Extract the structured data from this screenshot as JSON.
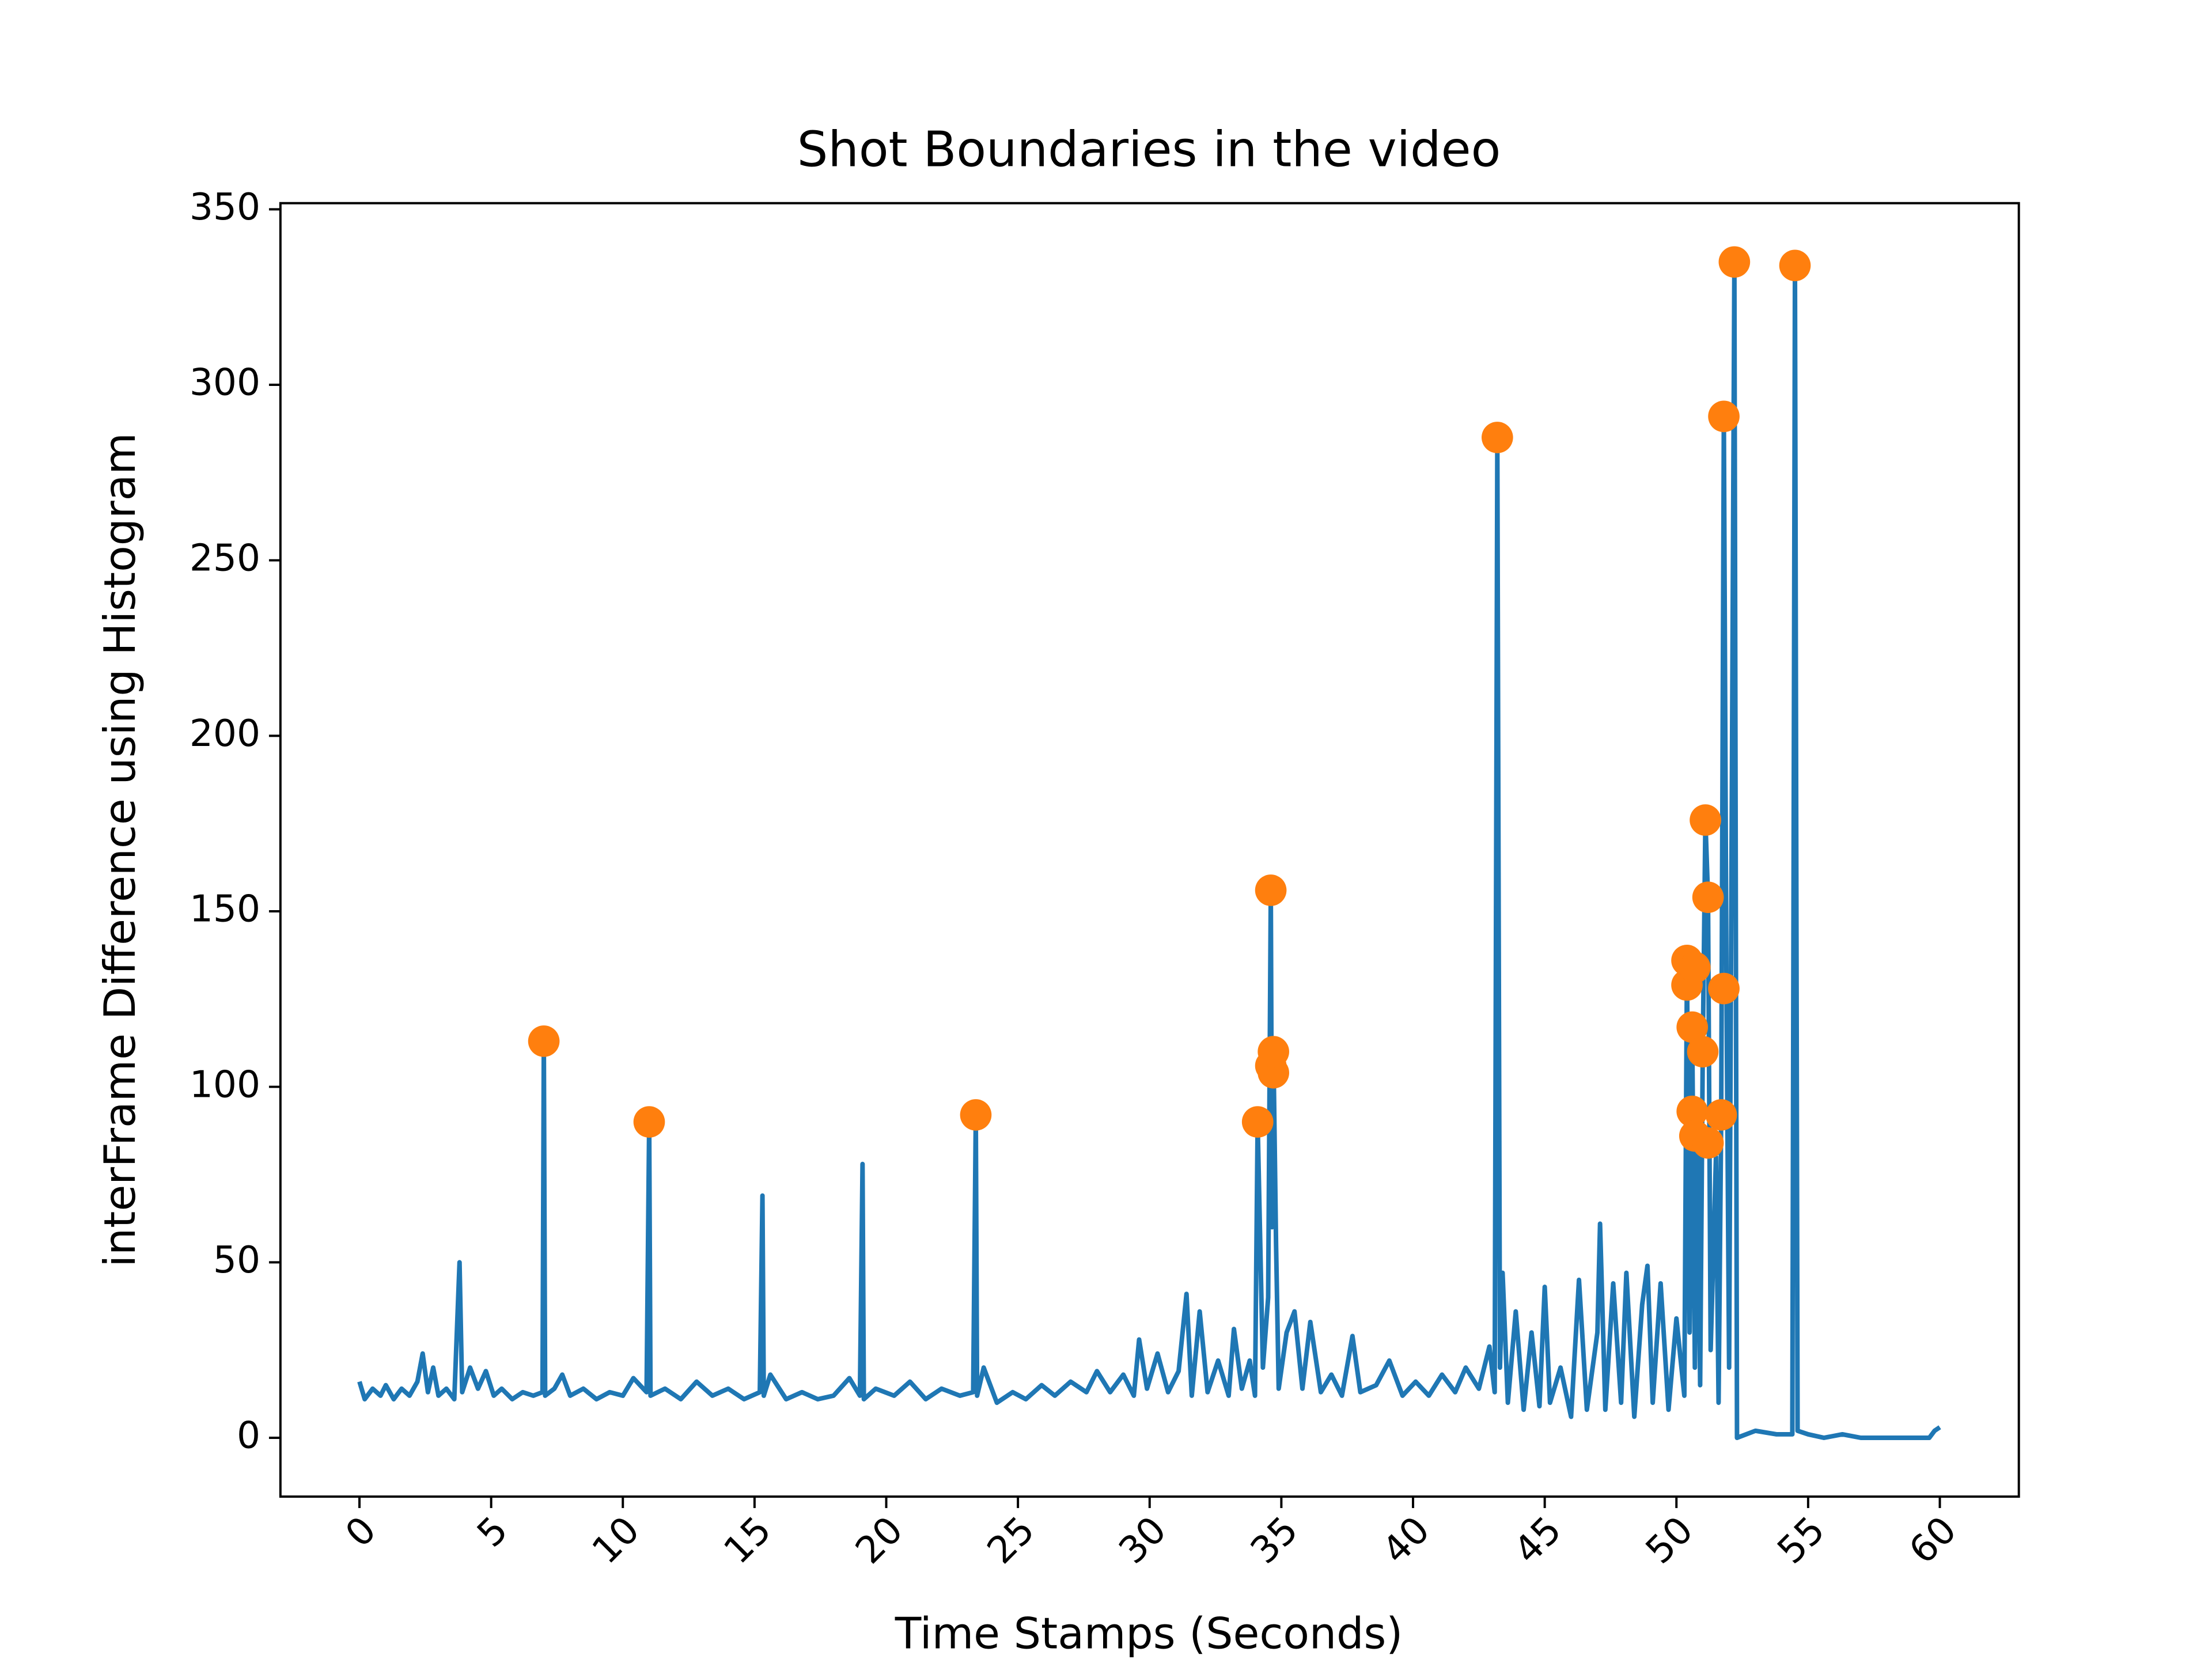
{
  "chart_data": {
    "type": "line",
    "title": "Shot Boundaries in the video",
    "x_label": "Time Stamps (Seconds)",
    "y_label": "interFrame Difference using Histogram",
    "xlim": [
      -3,
      63
    ],
    "ylim": [
      -16.75,
      351.75
    ],
    "xticks": [
      0,
      5,
      10,
      15,
      20,
      25,
      30,
      35,
      40,
      45,
      50,
      55,
      60
    ],
    "yticks": [
      0,
      50,
      100,
      150,
      200,
      250,
      300,
      350
    ],
    "line": {
      "color": "#1f77b4",
      "x": [
        0,
        0.2,
        0.5,
        0.8,
        1.0,
        1.3,
        1.6,
        1.9,
        2.2,
        2.4,
        2.6,
        2.8,
        3.0,
        3.3,
        3.6,
        3.8,
        3.9,
        4.2,
        4.5,
        4.8,
        5.1,
        5.4,
        5.8,
        6.2,
        6.6,
        6.95,
        7.0,
        7.05,
        7.4,
        7.7,
        8.0,
        8.5,
        9.0,
        9.5,
        10.0,
        10.4,
        10.9,
        11.0,
        11.05,
        11.6,
        12.2,
        12.8,
        13.4,
        14.0,
        14.6,
        15.2,
        15.3,
        15.35,
        15.6,
        16.2,
        16.8,
        17.4,
        18.0,
        18.6,
        19.0,
        19.1,
        19.15,
        19.6,
        20.3,
        20.9,
        21.5,
        22.1,
        22.8,
        23.3,
        23.4,
        23.45,
        23.7,
        24.2,
        24.8,
        25.3,
        25.9,
        26.4,
        27.0,
        27.6,
        28.0,
        28.5,
        29.0,
        29.4,
        29.6,
        29.9,
        30.3,
        30.7,
        31.1,
        31.4,
        31.6,
        31.9,
        32.2,
        32.6,
        33.0,
        33.2,
        33.5,
        33.8,
        34.0,
        34.1,
        34.2,
        34.3,
        34.5,
        34.6,
        34.65,
        34.7,
        34.8,
        34.9,
        35.2,
        35.5,
        35.8,
        36.1,
        36.5,
        36.9,
        37.3,
        37.7,
        38.0,
        38.6,
        39.1,
        39.6,
        40.1,
        40.6,
        41.1,
        41.6,
        42.0,
        42.5,
        42.9,
        43.1,
        43.2,
        43.3,
        43.4,
        43.6,
        43.9,
        44.2,
        44.5,
        44.8,
        45.0,
        45.2,
        45.6,
        46.0,
        46.3,
        46.6,
        47.0,
        47.1,
        47.3,
        47.6,
        47.9,
        48.1,
        48.4,
        48.7,
        48.9,
        49.1,
        49.4,
        49.7,
        50.0,
        50.3,
        50.4,
        50.5,
        50.6,
        50.7,
        50.8,
        50.9,
        51.0,
        51.1,
        51.2,
        51.3,
        51.5,
        51.6,
        51.7,
        51.8,
        51.9,
        52.0,
        52.2,
        52.3,
        53.0,
        53.8,
        54.4,
        54.5,
        54.6,
        55.0,
        55.6,
        56.3,
        57.0,
        58.0,
        59.0,
        59.6,
        59.8,
        60.0
      ],
      "values": [
        16,
        11,
        14,
        12,
        15,
        11,
        14,
        12,
        16,
        24,
        13,
        20,
        12,
        14,
        11,
        50,
        13,
        20,
        14,
        19,
        12,
        14,
        11,
        13,
        12,
        13,
        113,
        12,
        14,
        18,
        12,
        14,
        11,
        13,
        12,
        17,
        13,
        90,
        12,
        14,
        11,
        16,
        12,
        14,
        11,
        13,
        69,
        12,
        18,
        11,
        13,
        11,
        12,
        17,
        12,
        78,
        11,
        14,
        12,
        16,
        11,
        14,
        12,
        13,
        92,
        12,
        20,
        10,
        13,
        11,
        15,
        12,
        16,
        13,
        19,
        13,
        18,
        12,
        28,
        14,
        24,
        13,
        19,
        41,
        12,
        36,
        13,
        22,
        12,
        31,
        14,
        22,
        12,
        90,
        55,
        20,
        40,
        156,
        60,
        110,
        55,
        14,
        30,
        36,
        14,
        33,
        13,
        18,
        12,
        29,
        13,
        15,
        22,
        12,
        16,
        12,
        18,
        13,
        20,
        14,
        26,
        13,
        284,
        20,
        47,
        10,
        36,
        8,
        30,
        9,
        43,
        10,
        20,
        6,
        45,
        8,
        30,
        61,
        8,
        44,
        10,
        47,
        6,
        38,
        49,
        10,
        44,
        8,
        34,
        12,
        135,
        30,
        116,
        20,
        93,
        15,
        110,
        176,
        154,
        25,
        80,
        10,
        92,
        291,
        128,
        20,
        335,
        0,
        2,
        1,
        1,
        334,
        2,
        1,
        0,
        1,
        0,
        0,
        0,
        0,
        2,
        3
      ]
    },
    "points": {
      "color": "#ff7f0e",
      "x": [
        7.0,
        11.0,
        23.4,
        34.1,
        34.6,
        34.6,
        34.7,
        34.7,
        43.2,
        50.4,
        50.4,
        50.6,
        50.6,
        50.7,
        50.7,
        51.0,
        51.1,
        51.2,
        51.2,
        51.7,
        51.8,
        51.8,
        52.2,
        54.5
      ],
      "values": [
        113,
        90,
        92,
        90,
        156,
        106,
        104,
        110,
        285,
        129,
        136,
        93,
        117,
        134,
        86,
        110,
        176,
        154,
        84,
        92,
        128,
        291,
        335,
        334
      ]
    }
  }
}
